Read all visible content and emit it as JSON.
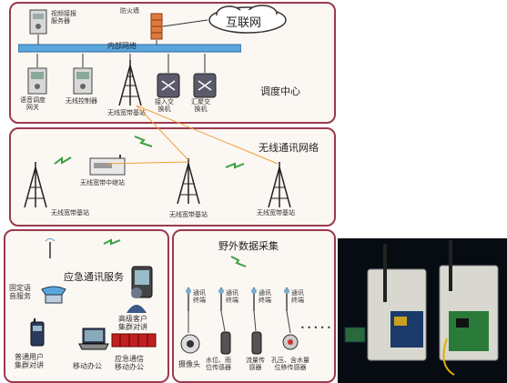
{
  "dispatch": {
    "title": "调度中心",
    "internet": "互联网",
    "firewall": "防火墙",
    "video_server": "视频接报\n服务器",
    "intranet": "内部网络",
    "gateway": "语音调度\n网关",
    "wireless_ctrl": "无线控制器",
    "base_station": "无线宽带基站",
    "access_switch": "接入交\n换机",
    "core_switch": "汇聚交\n换机"
  },
  "wireless": {
    "title": "无线通讯网络",
    "relay": "无线宽带中继站",
    "bs_left": "无线宽带基站",
    "bs_mid": "无线宽带基站",
    "bs_right": "无线宽带基站"
  },
  "emergency": {
    "title": "应急通讯服务",
    "fixed_phone": "固定语\n音服务",
    "premium": "高级客户\n集群对讲",
    "ordinary": "普通用户\n集群对讲",
    "mobile_office": "移动办公",
    "emergency_office": "应急通信\n移动办公"
  },
  "field": {
    "title": "野外数据采集",
    "terminal": "通讯\n终端",
    "camera": "摄像头",
    "level_sensor": "水位、雨\n位传感器",
    "flow_sensor": "流量传\n感器",
    "pore_sensor": "孔压、含水量\n位移传感器",
    "dots": "• • • • •"
  },
  "colors": {
    "panel_border": "#9a3a4e",
    "panel_fill": "#fbf7f2",
    "link_orange": "#f0a040",
    "wave_green": "#3aa040"
  }
}
